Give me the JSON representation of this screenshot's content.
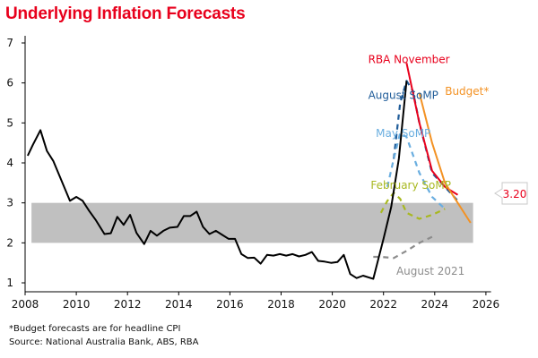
{
  "chart_data": {
    "type": "line",
    "title": "Underlying Inflation Forecasts",
    "xlabel": "",
    "ylabel": "",
    "xlim": [
      2008,
      2026.3
    ],
    "ylim": [
      0.75,
      7.2
    ],
    "x_ticks": [
      2008,
      2010,
      2012,
      2014,
      2016,
      2018,
      2020,
      2022,
      2024,
      2026
    ],
    "y_ticks": [
      1,
      2,
      3,
      4,
      5,
      6,
      7
    ],
    "grid": false,
    "legend": "inline-labels",
    "target_band": {
      "low": 2,
      "high": 3,
      "x_start": 2008.25,
      "x_end": 2025.5,
      "color": "#c0c0c0"
    },
    "series": [
      {
        "name": "Actual",
        "color": "#000000",
        "dash": false,
        "x": [
          2008.1,
          2008.3,
          2008.6,
          2008.85,
          2009.1,
          2009.75,
          2010.0,
          2010.25,
          2010.5,
          2010.75,
          2011.1,
          2011.35,
          2011.6,
          2011.85,
          2012.1,
          2012.35,
          2012.65,
          2012.9,
          2013.15,
          2013.4,
          2013.65,
          2013.95,
          2014.2,
          2014.45,
          2014.7,
          2014.95,
          2015.2,
          2015.45,
          2015.7,
          2015.95,
          2016.2,
          2016.45,
          2016.7,
          2016.95,
          2017.2,
          2017.45,
          2017.7,
          2017.95,
          2018.2,
          2018.45,
          2018.7,
          2018.95,
          2019.2,
          2019.45,
          2019.7,
          2019.95,
          2020.2,
          2020.45,
          2020.7,
          2020.95,
          2021.2,
          2021.6,
          2022.0,
          2022.3,
          2022.6,
          2022.9
        ],
        "y": [
          4.18,
          4.45,
          4.82,
          4.3,
          4.05,
          3.05,
          3.15,
          3.05,
          2.8,
          2.58,
          2.22,
          2.24,
          2.65,
          2.45,
          2.7,
          2.25,
          1.97,
          2.3,
          2.18,
          2.3,
          2.38,
          2.4,
          2.67,
          2.67,
          2.78,
          2.4,
          2.22,
          2.3,
          2.2,
          2.1,
          2.1,
          1.72,
          1.62,
          1.63,
          1.48,
          1.7,
          1.68,
          1.72,
          1.68,
          1.72,
          1.66,
          1.7,
          1.77,
          1.55,
          1.53,
          1.5,
          1.52,
          1.7,
          1.22,
          1.12,
          1.18,
          1.1,
          2.1,
          2.9,
          4.1,
          6.05
        ]
      },
      {
        "name": "RBA November",
        "color": "#e8001c",
        "dash": false,
        "x": [
          2022.9,
          2023.4,
          2023.9,
          2024.4,
          2024.9
        ],
        "y": [
          6.5,
          5.0,
          3.8,
          3.4,
          3.2
        ]
      },
      {
        "name": "Budget*",
        "color": "#f39224",
        "dash": false,
        "x": [
          2023.4,
          2023.9,
          2024.4,
          2024.9,
          2025.4
        ],
        "y": [
          5.75,
          4.5,
          3.5,
          3.0,
          2.5
        ]
      },
      {
        "name": "August SoMP",
        "color": "#1f5c99",
        "dash": true,
        "x": [
          2022.4,
          2022.65,
          2022.9,
          2023.15,
          2023.4,
          2023.9,
          2024.4,
          2024.9
        ],
        "y": [
          4.1,
          5.5,
          6.05,
          5.8,
          5.0,
          3.75,
          3.4,
          3.05
        ]
      },
      {
        "name": "May SoMP",
        "color": "#6aaee0",
        "dash": true,
        "x": [
          2022.15,
          2022.4,
          2022.65,
          2022.9,
          2023.4,
          2023.9,
          2024.4
        ],
        "y": [
          3.4,
          4.1,
          4.75,
          4.65,
          3.75,
          3.15,
          2.85
        ]
      },
      {
        "name": "February SoMP",
        "color": "#a8b820",
        "dash": true,
        "x": [
          2021.9,
          2022.15,
          2022.4,
          2022.65,
          2022.9,
          2023.4,
          2023.9,
          2024.4
        ],
        "y": [
          2.75,
          3.05,
          3.25,
          3.1,
          2.75,
          2.6,
          2.7,
          2.85
        ]
      },
      {
        "name": "August 2021",
        "color": "#8c8c8c",
        "dash": true,
        "x": [
          2021.6,
          2021.9,
          2022.4,
          2022.9,
          2023.4,
          2023.9
        ],
        "y": [
          1.65,
          1.65,
          1.62,
          1.8,
          2.0,
          2.15
        ]
      }
    ],
    "annotations": [
      {
        "text": "RBA November",
        "color": "#e8001c",
        "x": 2021.4,
        "y": 6.5
      },
      {
        "text": "August SoMP",
        "color": "#1f5c99",
        "x": 2021.4,
        "y": 5.6
      },
      {
        "text": "Budget*",
        "color": "#f39224",
        "x": 2024.4,
        "y": 5.7
      },
      {
        "text": "May SoMP",
        "color": "#6aaee0",
        "x": 2021.7,
        "y": 4.65
      },
      {
        "text": "February SoMP",
        "color": "#a8b820",
        "x": 2021.5,
        "y": 3.35
      },
      {
        "text": "August 2021",
        "color": "#8c8c8c",
        "x": 2022.5,
        "y": 1.2
      }
    ],
    "callout": {
      "text": "3.20",
      "color": "#e8001c"
    }
  },
  "footnotes": {
    "note": "*Budget forecasts are for headline CPI",
    "source": "Source: National Australia Bank, ABS, RBA"
  }
}
